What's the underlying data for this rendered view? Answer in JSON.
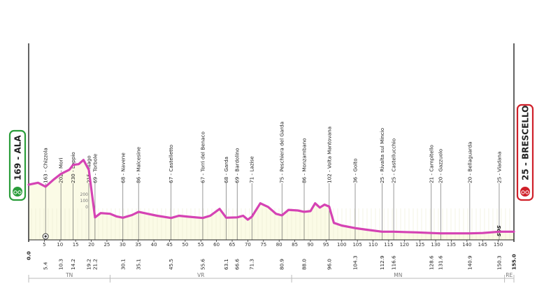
{
  "chart_data": {
    "type": "area",
    "xlabel": "",
    "ylabel": "",
    "xlim": [
      0,
      155
    ],
    "ylim": [
      0,
      300
    ],
    "grid": false,
    "x_ticks": [
      5,
      10,
      15,
      20,
      25,
      30,
      35,
      40,
      45,
      50,
      55,
      60,
      65,
      70,
      75,
      80,
      85,
      90,
      95,
      100,
      105,
      110,
      115,
      120,
      125,
      130,
      135,
      140,
      145,
      150
    ],
    "altitude_scale": [
      "200",
      "100",
      "0"
    ],
    "start": {
      "label": "169 - ALA",
      "km": "0.0",
      "altitude": 169,
      "color": "#2a9d3a"
    },
    "finish": {
      "label": "25 - BRESCELLO",
      "km": "155.0",
      "altitude": 25,
      "color": "#d0202a"
    },
    "sds_label": "SDS",
    "line_color": "#d543b4",
    "fill_color": "#fbfbe6",
    "waypoints": [
      {
        "label": "163 - Chizzola",
        "km": 5.4,
        "km_label": "5.4"
      },
      {
        "label": "202 - Mori",
        "km": 10.3,
        "km_label": "10.3"
      },
      {
        "label": "230 - Loppio",
        "km": 14.2,
        "km_label": "14.2"
      },
      {
        "label": "215 - Nago",
        "km": 19.2,
        "km_label": "19.2"
      },
      {
        "label": "69 - Torbole",
        "km": 21.2,
        "km_label": "21.2"
      },
      {
        "label": "68 - Navene",
        "km": 30.1,
        "km_label": "30.1"
      },
      {
        "label": "86 - Malcesine",
        "km": 35.1,
        "km_label": "35.1"
      },
      {
        "label": "67 - Castelletto",
        "km": 45.5,
        "km_label": "45.5"
      },
      {
        "label": "67 - Torri del Benaco",
        "km": 55.6,
        "km_label": "55.6"
      },
      {
        "label": "68 - Garda",
        "km": 63.1,
        "km_label": "63.1"
      },
      {
        "label": "69 - Bardolino",
        "km": 66.6,
        "km_label": "66.6"
      },
      {
        "label": "71 - Lazise",
        "km": 71.3,
        "km_label": "71.3"
      },
      {
        "label": "75 - Peschiera del Garda",
        "km": 80.9,
        "km_label": "80.9"
      },
      {
        "label": "86 - Monzambano",
        "km": 88.0,
        "km_label": "88.0"
      },
      {
        "label": "102 - Volta Mantovana",
        "km": 96.0,
        "km_label": "96.0"
      },
      {
        "label": "36 - Goito",
        "km": 104.3,
        "km_label": "104.3"
      },
      {
        "label": "25 - Rivalta sul Mincio",
        "km": 112.9,
        "km_label": "112.9"
      },
      {
        "label": "25 - Castellucchio",
        "km": 116.6,
        "km_label": "116.6"
      },
      {
        "label": "21 - Campitello",
        "km": 128.6,
        "km_label": "128.6"
      },
      {
        "label": "20 - Gazzuolo",
        "km": 131.6,
        "km_label": "131.6"
      },
      {
        "label": "20 - Bellaguarda",
        "km": 140.9,
        "km_label": "140.9"
      },
      {
        "label": "25 - Viadana",
        "km": 150.3,
        "km_label": "150.3"
      }
    ],
    "profile": [
      [
        0,
        169
      ],
      [
        3,
        175
      ],
      [
        5.4,
        163
      ],
      [
        8,
        185
      ],
      [
        10.3,
        202
      ],
      [
        13,
        215
      ],
      [
        14.2,
        230
      ],
      [
        16,
        232
      ],
      [
        17.5,
        245
      ],
      [
        19.2,
        215
      ],
      [
        21.2,
        69
      ],
      [
        23,
        82
      ],
      [
        26,
        80
      ],
      [
        28,
        72
      ],
      [
        30.1,
        68
      ],
      [
        33,
        76
      ],
      [
        35.1,
        86
      ],
      [
        38,
        80
      ],
      [
        41,
        74
      ],
      [
        45.5,
        67
      ],
      [
        48,
        74
      ],
      [
        51,
        71
      ],
      [
        55.6,
        67
      ],
      [
        58,
        74
      ],
      [
        61,
        95
      ],
      [
        63.1,
        68
      ],
      [
        66.6,
        69
      ],
      [
        68.5,
        74
      ],
      [
        70,
        62
      ],
      [
        71.3,
        71
      ],
      [
        74,
        112
      ],
      [
        76.5,
        101
      ],
      [
        79,
        80
      ],
      [
        80.9,
        75
      ],
      [
        83,
        92
      ],
      [
        86,
        90
      ],
      [
        88,
        86
      ],
      [
        90,
        88
      ],
      [
        91.5,
        112
      ],
      [
        93,
        99
      ],
      [
        94.5,
        108
      ],
      [
        96,
        102
      ],
      [
        97.5,
        52
      ],
      [
        100,
        44
      ],
      [
        104.3,
        36
      ],
      [
        108,
        31
      ],
      [
        112.9,
        25
      ],
      [
        116.6,
        25
      ],
      [
        120,
        24
      ],
      [
        124,
        23
      ],
      [
        128.6,
        21
      ],
      [
        131.6,
        20
      ],
      [
        136,
        20
      ],
      [
        140.9,
        20
      ],
      [
        145,
        21
      ],
      [
        150.3,
        25
      ],
      [
        155,
        25
      ]
    ],
    "regions": [
      {
        "label": "TN",
        "from": 0,
        "to": 26
      },
      {
        "label": "VR",
        "from": 26,
        "to": 84
      },
      {
        "label": "MN",
        "from": 84,
        "to": 152
      },
      {
        "label": "RE",
        "from": 152,
        "to": 155
      }
    ]
  }
}
